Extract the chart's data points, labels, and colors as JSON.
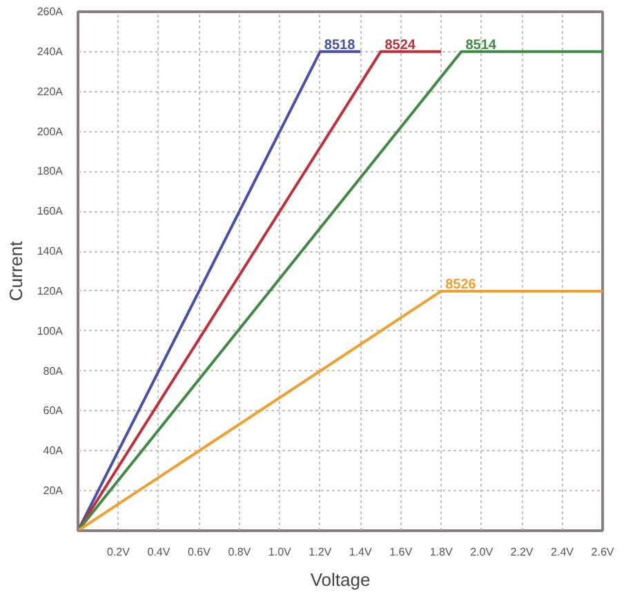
{
  "chart_data": {
    "type": "line",
    "xlabel": "Voltage",
    "ylabel": "Current",
    "xlim": [
      0,
      2.6
    ],
    "ylim": [
      0,
      260
    ],
    "xticks": [
      {
        "value": 0.2,
        "label": "0.2V"
      },
      {
        "value": 0.4,
        "label": "0.4V"
      },
      {
        "value": 0.6,
        "label": "0.6V"
      },
      {
        "value": 0.8,
        "label": "0.8V"
      },
      {
        "value": 1.0,
        "label": "1.0V"
      },
      {
        "value": 1.2,
        "label": "1.2V"
      },
      {
        "value": 1.4,
        "label": "1.4V"
      },
      {
        "value": 1.6,
        "label": "1.6V"
      },
      {
        "value": 1.8,
        "label": "1.8V"
      },
      {
        "value": 2.0,
        "label": "2.0V"
      },
      {
        "value": 2.2,
        "label": "2.2V"
      },
      {
        "value": 2.4,
        "label": "2.4V"
      },
      {
        "value": 2.6,
        "label": "2.6V"
      }
    ],
    "yticks": [
      {
        "value": 20,
        "label": "20A"
      },
      {
        "value": 40,
        "label": "40A"
      },
      {
        "value": 60,
        "label": "60A"
      },
      {
        "value": 80,
        "label": "80A"
      },
      {
        "value": 100,
        "label": "100A"
      },
      {
        "value": 120,
        "label": "120A"
      },
      {
        "value": 140,
        "label": "140A"
      },
      {
        "value": 160,
        "label": "160A"
      },
      {
        "value": 180,
        "label": "180A"
      },
      {
        "value": 200,
        "label": "200A"
      },
      {
        "value": 220,
        "label": "220A"
      },
      {
        "value": 240,
        "label": "240A"
      },
      {
        "value": 260,
        "label": "260A"
      }
    ],
    "grid": true,
    "line_style": "solid",
    "legend": false,
    "series": [
      {
        "name": "8518",
        "color": "#4a4fa8",
        "x": [
          0,
          1.2,
          1.4
        ],
        "values": [
          0,
          240,
          240
        ]
      },
      {
        "name": "8524",
        "color": "#c0303a",
        "x": [
          0,
          1.5,
          1.8
        ],
        "values": [
          0,
          240,
          240
        ]
      },
      {
        "name": "8514",
        "color": "#3f8a45",
        "x": [
          0,
          1.9,
          2.6
        ],
        "values": [
          0,
          240,
          240
        ]
      },
      {
        "name": "8526",
        "color": "#f0a030",
        "x": [
          0,
          1.8,
          2.6
        ],
        "values": [
          0,
          120,
          120
        ]
      }
    ]
  }
}
